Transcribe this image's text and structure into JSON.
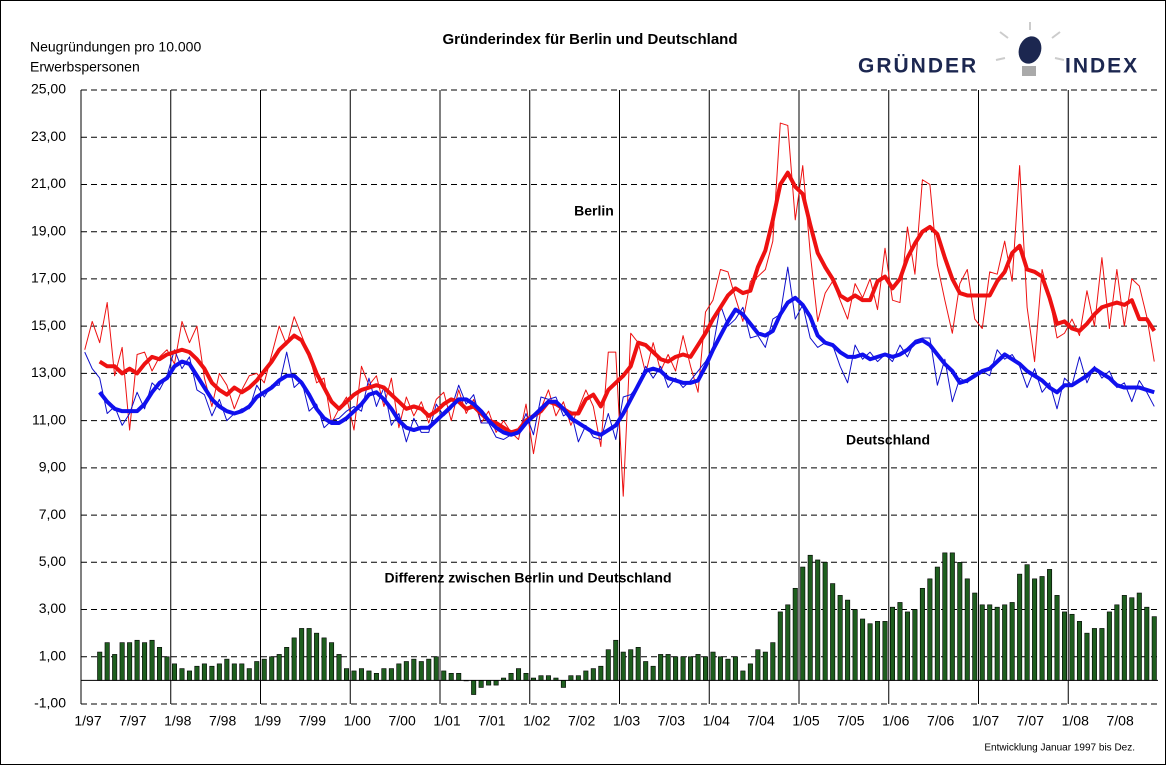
{
  "chart_data": {
    "type": "line",
    "title": "Gründerindex für Berlin und Deutschland",
    "ylabel": [
      "Neugründungen pro 10.000",
      "Erwerbspersonen"
    ],
    "logo": [
      "GRÜNDER",
      "INDEX"
    ],
    "footnote": "Entwicklung Januar 1997 bis Dez.",
    "annotations": [
      "Berlin",
      "Deutschland"
    ],
    "categories": [
      "1/97",
      null,
      null,
      null,
      null,
      null,
      "7/97",
      null,
      null,
      null,
      null,
      null,
      "1/98",
      null,
      null,
      null,
      null,
      null,
      "7/98",
      null,
      null,
      null,
      null,
      null,
      "1/99",
      null,
      null,
      null,
      null,
      null,
      "7/99",
      null,
      null,
      null,
      null,
      null,
      "1/00",
      null,
      null,
      null,
      null,
      null,
      "7/00",
      null,
      null,
      null,
      null,
      null,
      "1/01",
      null,
      null,
      null,
      null,
      null,
      "7/01",
      null,
      null,
      null,
      null,
      null,
      "1/02",
      null,
      null,
      null,
      null,
      null,
      "7/02",
      null,
      null,
      null,
      null,
      null,
      "1/03",
      null,
      null,
      null,
      null,
      null,
      "7/03",
      null,
      null,
      null,
      null,
      null,
      "1/04",
      null,
      null,
      null,
      null,
      null,
      "7/04",
      null,
      null,
      null,
      null,
      null,
      "1/05",
      null,
      null,
      null,
      null,
      null,
      "7/05",
      null,
      null,
      null,
      null,
      null,
      "1/06",
      null,
      null,
      null,
      null,
      null,
      "7/06",
      null,
      null,
      null,
      null,
      null,
      "1/07",
      null,
      null,
      null,
      null,
      null,
      "7/07",
      null,
      null,
      null,
      null,
      null,
      "1/08",
      null,
      null,
      null,
      null,
      null,
      "7/08",
      null,
      null,
      null,
      null,
      null
    ],
    "series": [
      {
        "name": "Berlin",
        "color": "#ee1111",
        "width": 4,
        "values": [
          null,
          null,
          13.5,
          13.3,
          13.3,
          13.0,
          13.2,
          13.0,
          13.4,
          13.7,
          13.6,
          13.8,
          13.9,
          14.0,
          13.9,
          13.6,
          13.2,
          12.6,
          12.3,
          12.1,
          12.4,
          12.2,
          12.4,
          12.7,
          13.1,
          13.5,
          14.0,
          14.3,
          14.6,
          14.4,
          13.8,
          13.0,
          12.4,
          11.8,
          11.5,
          11.8,
          12.1,
          12.3,
          12.4,
          12.5,
          12.4,
          12.1,
          11.8,
          11.5,
          11.6,
          11.5,
          11.2,
          11.4,
          11.7,
          11.9,
          11.8,
          11.5,
          11.6,
          11.3,
          11.0,
          10.9,
          10.7,
          10.5,
          10.6,
          11.0,
          11.2,
          11.4,
          11.8,
          11.7,
          11.5,
          11.3,
          11.3,
          11.9,
          12.1,
          11.6,
          12.3,
          12.6,
          12.9,
          13.3,
          14.3,
          14.2,
          13.9,
          13.6,
          13.5,
          13.7,
          13.8,
          13.7,
          14.2,
          14.7,
          15.3,
          15.8,
          16.3,
          16.6,
          16.4,
          16.5,
          17.5,
          18.2,
          19.5,
          21.0,
          21.5,
          20.9,
          20.6,
          19.3,
          18.1,
          17.5,
          17.0,
          16.3,
          16.1,
          16.3,
          16.1,
          16.1,
          16.9,
          17.1,
          16.6,
          17.0,
          17.9,
          18.5,
          19.0,
          19.2,
          18.9,
          17.9,
          17.0,
          16.4,
          16.3,
          16.3,
          16.3,
          16.3,
          16.9,
          17.3,
          18.1,
          18.4,
          17.4,
          17.3,
          17.1,
          16.2,
          15.1,
          15.2,
          14.9,
          14.8,
          15.1,
          15.5,
          15.8,
          15.9,
          16.0,
          15.9,
          16.1,
          15.3,
          15.3,
          14.8
        ]
      },
      {
        "name": "Deutschland",
        "color": "#1010ee",
        "width": 4,
        "values": [
          null,
          null,
          12.2,
          11.8,
          11.5,
          11.4,
          11.4,
          11.4,
          11.7,
          12.2,
          12.6,
          12.8,
          13.3,
          13.5,
          13.4,
          12.9,
          12.4,
          11.9,
          11.6,
          11.4,
          11.3,
          11.4,
          11.6,
          12.0,
          12.2,
          12.4,
          12.7,
          12.9,
          12.9,
          12.6,
          12.1,
          11.5,
          11.1,
          10.9,
          10.9,
          11.1,
          11.4,
          11.7,
          12.1,
          12.2,
          11.9,
          11.5,
          11.0,
          10.7,
          10.6,
          10.7,
          10.7,
          11.0,
          11.3,
          11.6,
          11.9,
          11.9,
          11.7,
          11.4,
          11.0,
          10.7,
          10.5,
          10.4,
          10.5,
          10.9,
          11.2,
          11.5,
          11.8,
          11.8,
          11.5,
          11.1,
          10.9,
          10.7,
          10.5,
          10.4,
          10.6,
          10.8,
          11.3,
          11.9,
          12.5,
          13.1,
          13.2,
          13.1,
          12.8,
          12.7,
          12.6,
          12.6,
          12.7,
          13.3,
          14.0,
          14.6,
          15.2,
          15.7,
          15.5,
          15.1,
          14.7,
          14.6,
          14.8,
          15.5,
          16.0,
          16.2,
          15.9,
          15.4,
          14.6,
          14.3,
          14.2,
          13.9,
          13.7,
          13.7,
          13.8,
          13.6,
          13.7,
          13.8,
          13.7,
          13.8,
          14.0,
          14.3,
          14.4,
          14.2,
          13.8,
          13.4,
          13.1,
          12.6,
          12.7,
          12.9,
          13.1,
          13.2,
          13.5,
          13.8,
          13.6,
          13.4,
          13.1,
          12.9,
          12.7,
          12.4,
          12.2,
          12.5,
          12.5,
          12.7,
          12.9,
          13.2,
          13.0,
          12.8,
          12.5,
          12.4,
          12.4,
          12.4,
          12.3,
          12.2
        ]
      },
      {
        "color": "#ee1111",
        "width": 1,
        "values": [
          14.0,
          15.2,
          14.3,
          16.0,
          12.9,
          14.1,
          10.6,
          13.8,
          13.9,
          13.1,
          13.7,
          14.0,
          13.4,
          15.2,
          14.3,
          15.0,
          12.8,
          11.6,
          13.0,
          12.5,
          11.5,
          12.3,
          12.9,
          13.0,
          12.6,
          13.8,
          15.0,
          14.2,
          15.4,
          14.6,
          13.8,
          12.6,
          12.8,
          10.9,
          11.5,
          12.0,
          10.6,
          13.3,
          12.5,
          12.9,
          11.6,
          12.8,
          10.7,
          12.0,
          11.2,
          11.8,
          10.9,
          11.9,
          12.2,
          11.0,
          12.3,
          11.3,
          11.9,
          10.9,
          11.4,
          10.5,
          11.0,
          10.5,
          10.2,
          11.7,
          9.6,
          11.5,
          12.3,
          11.2,
          11.8,
          10.8,
          11.5,
          12.3,
          11.6,
          9.9,
          13.9,
          13.9,
          7.8,
          14.7,
          14.3,
          13.0,
          14.3,
          13.1,
          13.8,
          13.1,
          14.6,
          13.3,
          12.2,
          15.6,
          16.1,
          17.4,
          17.3,
          16.2,
          15.2,
          16.9,
          17.1,
          17.4,
          18.6,
          23.6,
          23.5,
          19.5,
          21.8,
          18.1,
          15.2,
          16.4,
          16.9,
          16.1,
          15.3,
          16.8,
          16.2,
          17.0,
          15.7,
          18.3,
          16.1,
          16.0,
          19.2,
          17.2,
          21.2,
          21.0,
          17.6,
          16.1,
          14.7,
          16.8,
          17.4,
          15.3,
          14.9,
          17.3,
          17.2,
          18.6,
          16.9,
          21.8,
          15.8,
          13.5,
          17.4,
          16.2,
          14.5,
          14.7,
          15.3,
          14.6,
          16.5,
          15.0,
          17.9,
          14.9,
          17.4,
          15.0,
          17.0,
          16.7,
          15.4,
          13.5
        ]
      },
      {
        "color": "#1010cc",
        "width": 1,
        "values": [
          13.9,
          13.2,
          12.8,
          11.3,
          11.6,
          10.8,
          11.3,
          12.2,
          11.5,
          12.6,
          12.3,
          12.9,
          14.0,
          13.2,
          13.7,
          12.3,
          12.1,
          11.2,
          11.9,
          11.0,
          11.3,
          11.5,
          11.5,
          12.5,
          12.0,
          12.5,
          12.5,
          13.9,
          12.4,
          12.7,
          11.4,
          11.7,
          10.7,
          11.0,
          11.1,
          11.4,
          11.6,
          11.4,
          12.8,
          11.6,
          12.4,
          10.8,
          11.3,
          10.1,
          11.1,
          10.5,
          10.5,
          11.7,
          11.2,
          11.5,
          12.5,
          11.7,
          12.1,
          10.9,
          10.9,
          10.3,
          10.2,
          10.4,
          10.5,
          11.3,
          10.4,
          12.0,
          11.9,
          12.0,
          11.2,
          11.4,
          10.1,
          10.8,
          10.3,
          10.2,
          11.3,
          10.2,
          12.0,
          12.1,
          12.5,
          13.3,
          12.8,
          13.3,
          12.4,
          12.8,
          12.4,
          12.7,
          13.1,
          13.5,
          14.1,
          15.9,
          15.0,
          15.3,
          15.8,
          14.5,
          14.6,
          14.1,
          15.3,
          15.5,
          17.5,
          15.3,
          15.9,
          14.5,
          14.1,
          14.3,
          14.2,
          13.3,
          12.6,
          14.2,
          13.6,
          13.9,
          13.5,
          13.8,
          13.5,
          14.2,
          13.7,
          14.4,
          14.5,
          14.5,
          12.5,
          13.6,
          11.8,
          12.8,
          12.6,
          13.0,
          13.1,
          12.9,
          14.0,
          13.6,
          13.8,
          13.3,
          12.4,
          13.2,
          12.2,
          12.6,
          11.5,
          12.8,
          12.5,
          13.7,
          12.6,
          13.3,
          12.8,
          13.1,
          12.4,
          12.6,
          11.8,
          12.7,
          12.2,
          11.6
        ]
      }
    ],
    "bars": {
      "name": "Differenz zwischen Berlin und Deutschland",
      "color": "#1e5e1e",
      "values": [
        null,
        null,
        1.2,
        1.6,
        1.1,
        1.6,
        1.6,
        1.7,
        1.6,
        1.7,
        1.4,
        1.0,
        0.7,
        0.5,
        0.4,
        0.6,
        0.7,
        0.6,
        0.7,
        0.9,
        0.7,
        0.7,
        0.5,
        0.8,
        0.9,
        1.0,
        1.1,
        1.4,
        1.8,
        2.2,
        2.2,
        2.0,
        1.8,
        1.6,
        1.1,
        0.5,
        0.4,
        0.5,
        0.4,
        0.3,
        0.5,
        0.5,
        0.7,
        0.8,
        0.9,
        0.8,
        0.9,
        1.0,
        0.4,
        0.3,
        0.3,
        0.0,
        -0.6,
        -0.3,
        -0.2,
        -0.2,
        0.1,
        0.3,
        0.5,
        0.3,
        0.1,
        0.2,
        0.2,
        0.1,
        -0.3,
        0.2,
        0.2,
        0.4,
        0.5,
        0.6,
        1.3,
        1.7,
        1.2,
        1.3,
        1.4,
        0.8,
        0.6,
        1.1,
        1.1,
        1.0,
        1.0,
        1.0,
        1.1,
        1.0,
        1.2,
        1.0,
        0.9,
        1.0,
        0.4,
        0.7,
        1.3,
        1.2,
        1.6,
        2.9,
        3.2,
        3.9,
        4.8,
        5.3,
        5.1,
        5.0,
        4.1,
        3.6,
        3.4,
        3.0,
        2.6,
        2.4,
        2.5,
        2.5,
        3.1,
        3.3,
        2.9,
        3.0,
        3.9,
        4.3,
        4.8,
        5.4,
        5.4,
        5.0,
        4.3,
        3.7,
        3.2,
        3.2,
        3.1,
        3.2,
        3.3,
        4.5,
        4.9,
        4.3,
        4.4,
        4.7,
        3.6,
        2.9,
        2.8,
        2.5,
        2.0,
        2.2,
        2.2,
        2.9,
        3.2,
        3.6,
        3.5,
        3.7,
        3.1,
        2.7
      ]
    },
    "ylim": [
      -1,
      25
    ],
    "yticks": [
      {
        "value": -1,
        "label": "-1,00"
      },
      {
        "value": 1,
        "label": "1,00"
      },
      {
        "value": 3,
        "label": "3,00"
      },
      {
        "value": 5,
        "label": "5,00"
      },
      {
        "value": 7,
        "label": "7,00"
      },
      {
        "value": 9,
        "label": "9,00"
      },
      {
        "value": 11,
        "label": "11,00"
      },
      {
        "value": 13,
        "label": "13,00"
      },
      {
        "value": 15,
        "label": "15,00"
      },
      {
        "value": 17,
        "label": "17,00"
      },
      {
        "value": 19,
        "label": "19,00"
      },
      {
        "value": 21,
        "label": "21,00"
      },
      {
        "value": 23,
        "label": "23,00"
      },
      {
        "value": 25,
        "label": "25,00"
      }
    ],
    "grid": true
  }
}
